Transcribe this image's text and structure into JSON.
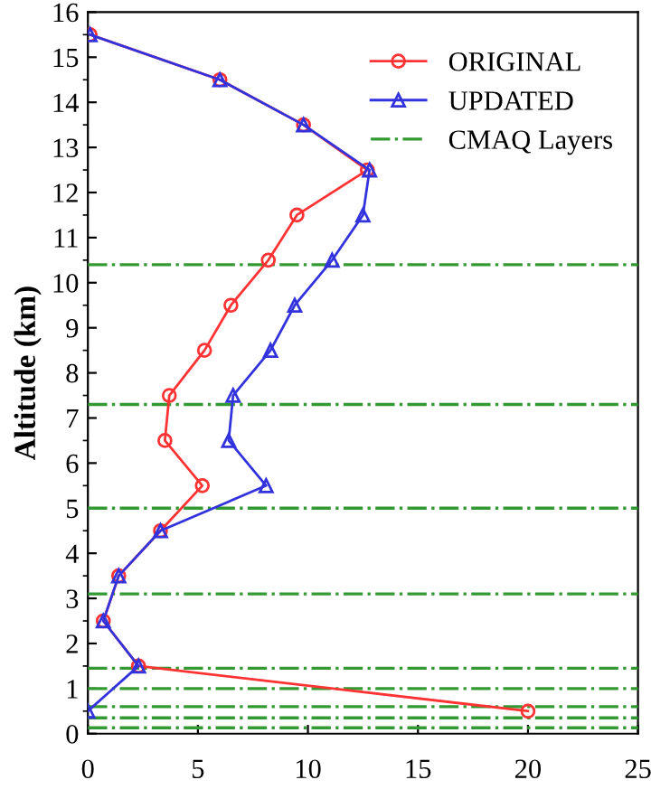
{
  "chart_data": {
    "type": "line",
    "ylabel": "Altitude (km)",
    "series": [
      {
        "name": "ORIGINAL",
        "color": "#ff3333",
        "marker": "circle",
        "x": [
          0.1,
          6.0,
          9.8,
          12.7,
          9.5,
          8.2,
          6.5,
          5.3,
          3.7,
          3.5,
          5.2,
          3.3,
          1.4,
          0.7,
          2.3,
          20.0
        ],
        "values": [
          15.5,
          14.5,
          13.5,
          12.5,
          11.5,
          10.5,
          9.5,
          8.5,
          7.5,
          6.5,
          5.5,
          4.5,
          3.5,
          2.5,
          1.5,
          0.5
        ]
      },
      {
        "name": "UPDATED",
        "color": "#3333dd",
        "marker": "triangle",
        "x": [
          0.1,
          6.0,
          9.8,
          12.8,
          12.5,
          11.1,
          9.4,
          8.3,
          6.6,
          6.4,
          8.1,
          3.3,
          1.4,
          0.7,
          2.3,
          0.0
        ],
        "values": [
          15.5,
          14.5,
          13.5,
          12.5,
          11.5,
          10.5,
          9.5,
          8.5,
          7.5,
          6.5,
          5.5,
          4.5,
          3.5,
          2.5,
          1.5,
          0.5
        ]
      }
    ],
    "ref_lines": [
      {
        "axis": "y",
        "value": 10.4,
        "label": "CMAQ Layers",
        "color": "#339933",
        "line_style": "dashdot"
      },
      {
        "axis": "y",
        "value": 7.3,
        "color": "#339933",
        "line_style": "dashdot"
      },
      {
        "axis": "y",
        "value": 5.0,
        "color": "#339933",
        "line_style": "dashdot"
      },
      {
        "axis": "y",
        "value": 3.1,
        "color": "#339933",
        "line_style": "dashdot"
      },
      {
        "axis": "y",
        "value": 1.45,
        "color": "#339933",
        "line_style": "dashdot"
      },
      {
        "axis": "y",
        "value": 1.0,
        "color": "#339933",
        "line_style": "dashdot"
      },
      {
        "axis": "y",
        "value": 0.6,
        "color": "#339933",
        "line_style": "dashdot"
      },
      {
        "axis": "y",
        "value": 0.35,
        "color": "#339933",
        "line_style": "dashdot"
      },
      {
        "axis": "y",
        "value": 0.13,
        "color": "#339933",
        "line_style": "dashdot"
      }
    ],
    "xlim": [
      0,
      25
    ],
    "xticks": [
      0,
      5,
      10,
      15,
      20,
      25
    ],
    "ylim": [
      0,
      16
    ],
    "yticks": [
      0,
      1,
      2,
      3,
      4,
      5,
      6,
      7,
      8,
      9,
      10,
      11,
      12,
      13,
      14,
      15,
      16
    ],
    "grid": false,
    "legend": "top right"
  }
}
